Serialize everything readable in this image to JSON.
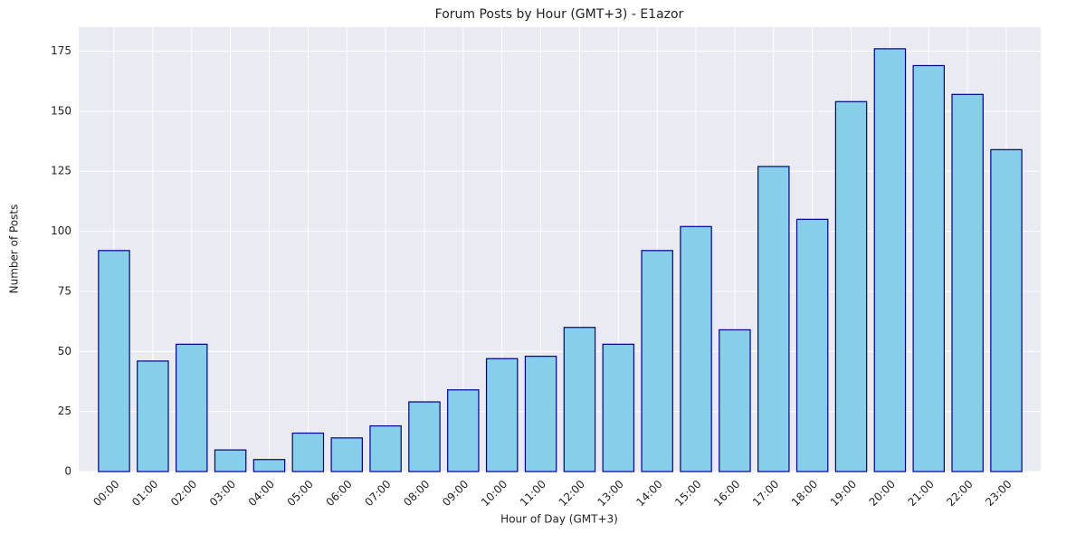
{
  "chart_data": {
    "type": "bar",
    "title": "Forum Posts by Hour (GMT+3) - E1azor",
    "x_label": "Hour of Day (GMT+3)",
    "y_label": "Number of Posts",
    "categories": [
      "00:00",
      "01:00",
      "02:00",
      "03:00",
      "04:00",
      "05:00",
      "06:00",
      "07:00",
      "08:00",
      "09:00",
      "10:00",
      "11:00",
      "12:00",
      "13:00",
      "14:00",
      "15:00",
      "16:00",
      "17:00",
      "18:00",
      "19:00",
      "20:00",
      "21:00",
      "22:00",
      "23:00"
    ],
    "values": [
      92,
      46,
      53,
      9,
      5,
      16,
      14,
      19,
      29,
      34,
      47,
      48,
      60,
      53,
      92,
      102,
      59,
      127,
      105,
      154,
      176,
      169,
      157,
      134
    ],
    "color": "#87ceeb",
    "edge_color": "#00008b",
    "ylim": [
      0,
      185
    ],
    "yticks": [
      0,
      25,
      50,
      75,
      100,
      125,
      150,
      175
    ],
    "grid": true
  }
}
